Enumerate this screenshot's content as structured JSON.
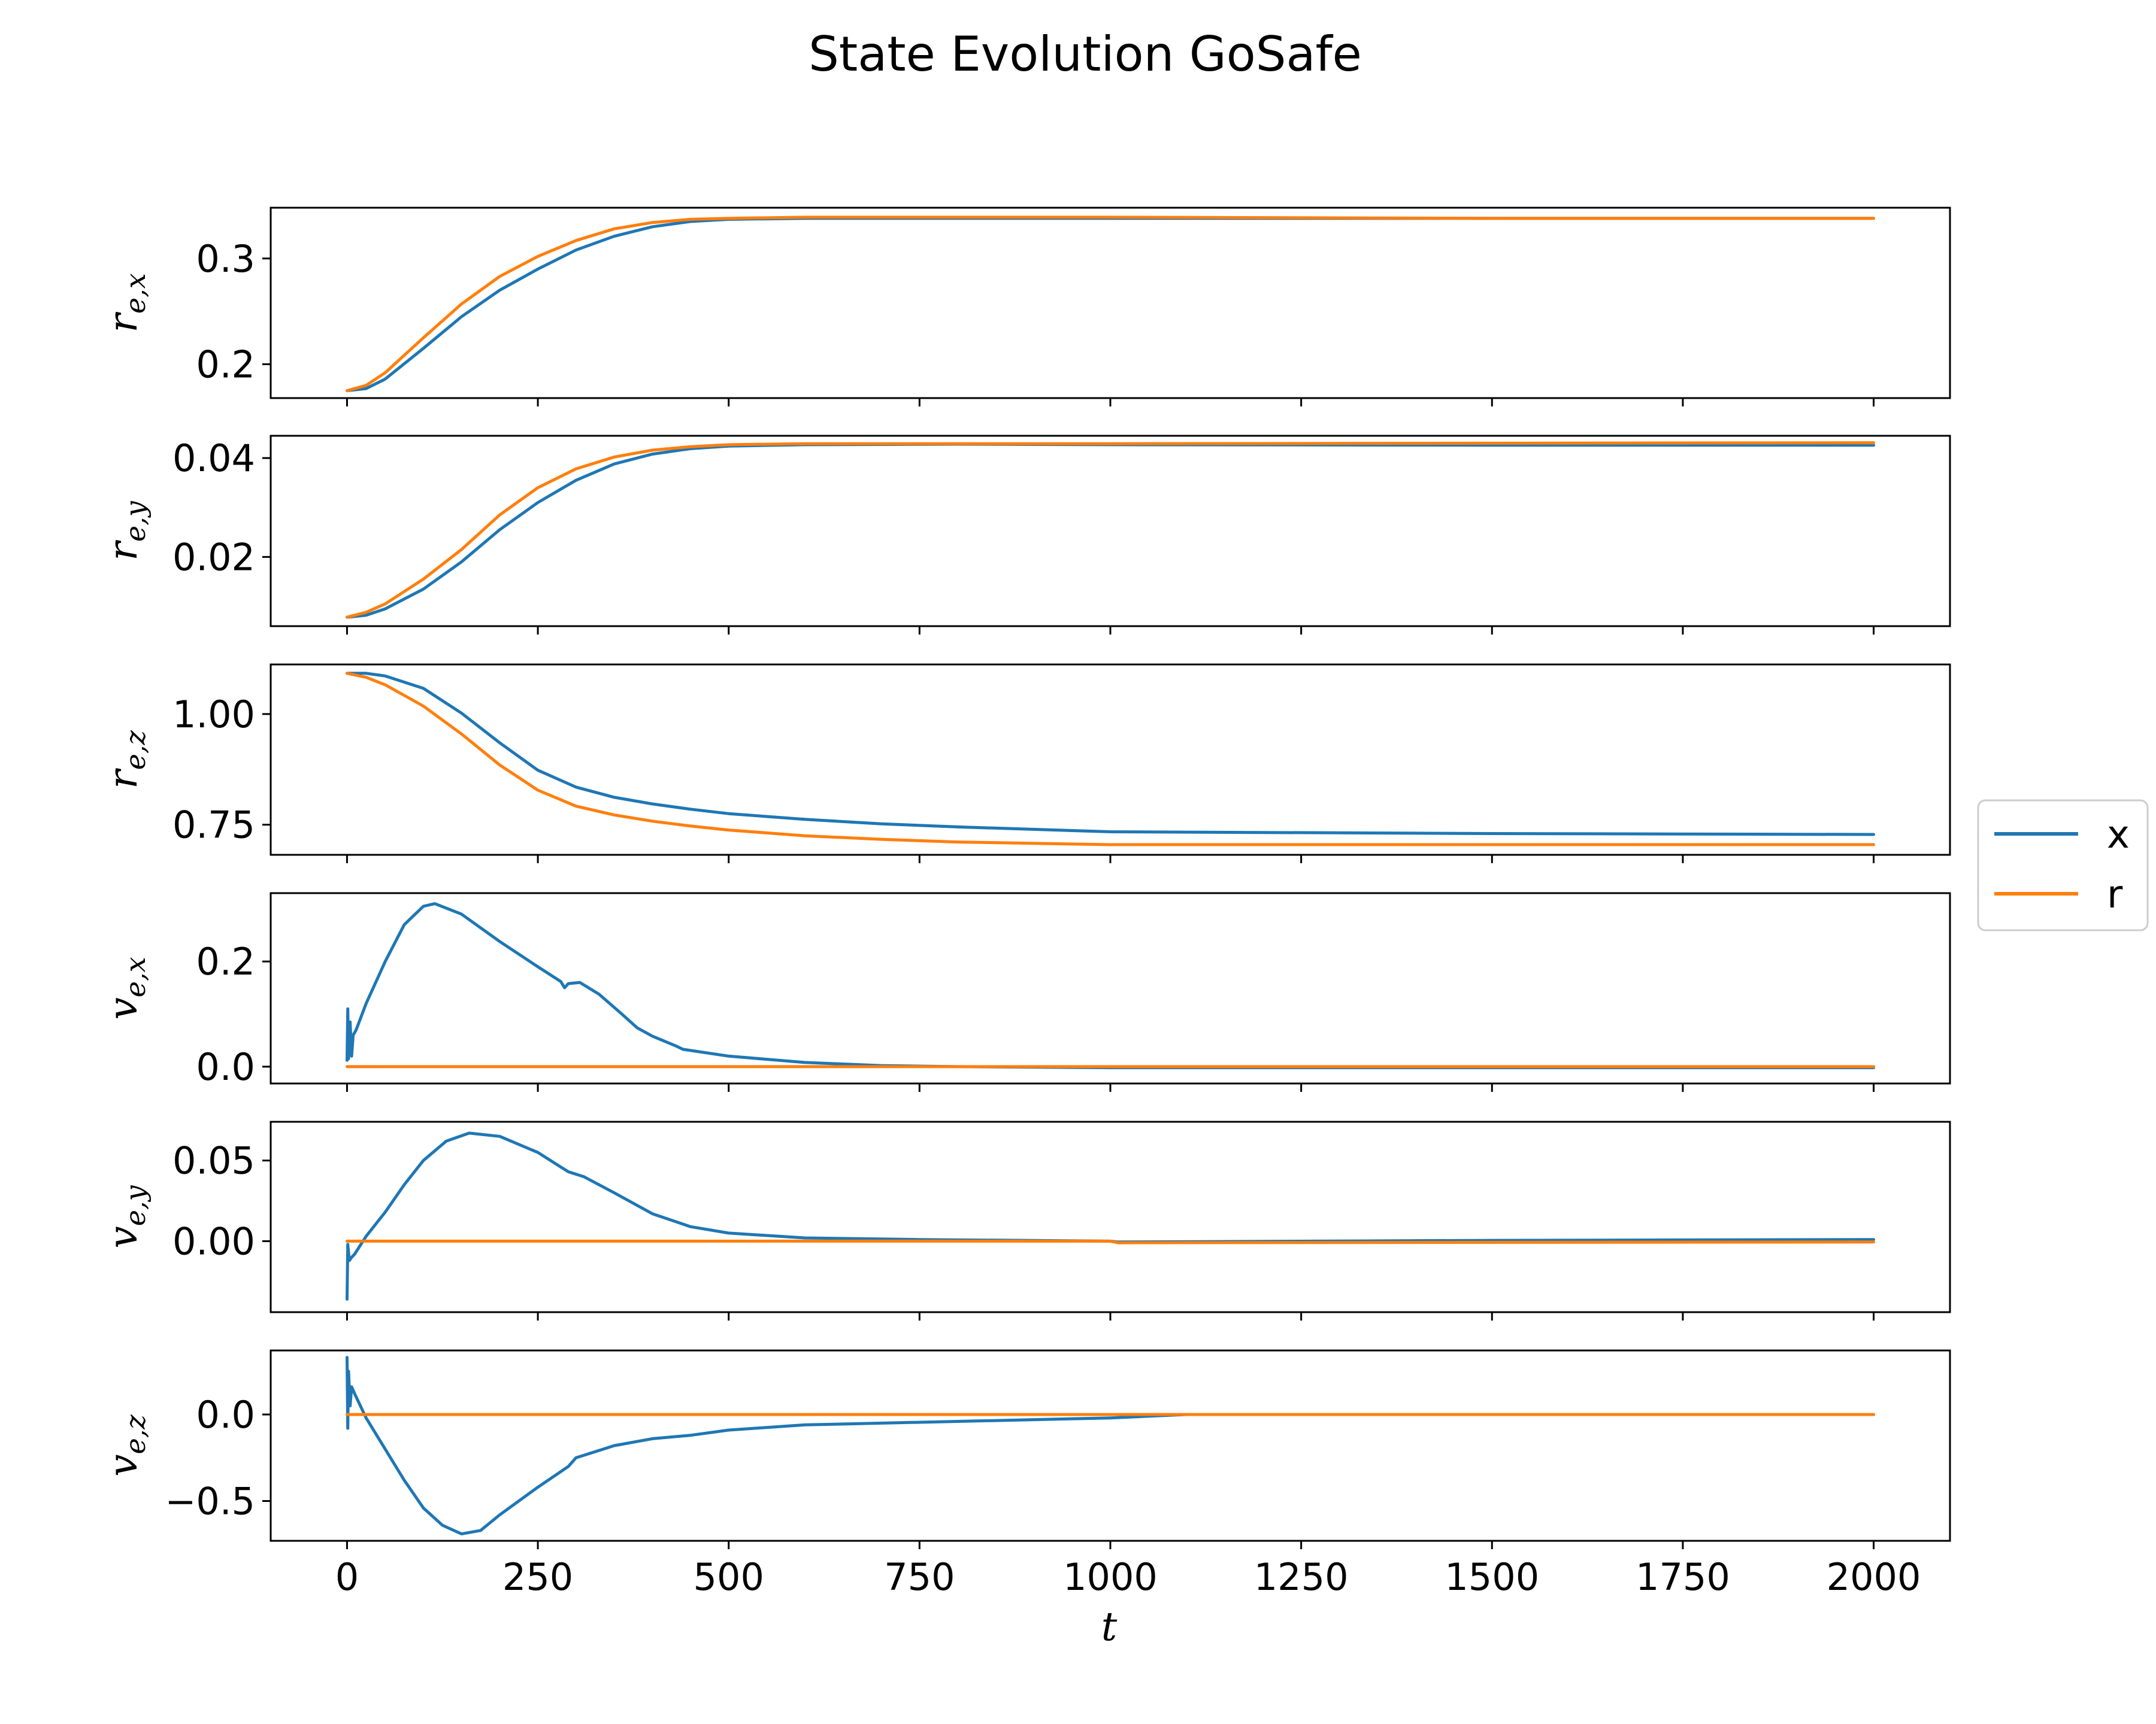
{
  "chart_data": {
    "type": "line",
    "title": "State Evolution GoSafe",
    "xlabel": "t",
    "xlim": [
      -100,
      2100
    ],
    "x_ticks": [
      0,
      250,
      500,
      750,
      1000,
      1250,
      1500,
      1750,
      2000
    ],
    "x_tick_labels": [
      "0",
      "250",
      "500",
      "750",
      "1000",
      "1250",
      "1500",
      "1750",
      "2000"
    ],
    "legend": {
      "placement": "center-right outside",
      "entries": [
        {
          "label": "x",
          "color": "#1f77b4"
        },
        {
          "label": "r",
          "color": "#ff7f0e"
        }
      ]
    },
    "subplots": [
      {
        "ylabel": {
          "base": "r",
          "sub": "e,x"
        },
        "ylim": [
          0.168,
          0.348
        ],
        "y_ticks": [
          0.2,
          0.3
        ],
        "y_tick_labels": [
          "0.2",
          "0.3"
        ],
        "series": [
          {
            "name": "x",
            "color": "#1f77b4",
            "points": [
              [
                0,
                0.175
              ],
              [
                25,
                0.177
              ],
              [
                50,
                0.186
              ],
              [
                100,
                0.215
              ],
              [
                150,
                0.245
              ],
              [
                200,
                0.27
              ],
              [
                250,
                0.29
              ],
              [
                300,
                0.308
              ],
              [
                350,
                0.321
              ],
              [
                400,
                0.33
              ],
              [
                450,
                0.335
              ],
              [
                500,
                0.337
              ],
              [
                600,
                0.338
              ],
              [
                800,
                0.338
              ],
              [
                1000,
                0.338
              ],
              [
                1500,
                0.338
              ],
              [
                2000,
                0.338
              ]
            ]
          },
          {
            "name": "r",
            "color": "#ff7f0e",
            "points": [
              [
                0,
                0.175
              ],
              [
                25,
                0.18
              ],
              [
                50,
                0.192
              ],
              [
                100,
                0.225
              ],
              [
                150,
                0.257
              ],
              [
                200,
                0.283
              ],
              [
                250,
                0.302
              ],
              [
                300,
                0.317
              ],
              [
                350,
                0.328
              ],
              [
                400,
                0.334
              ],
              [
                450,
                0.337
              ],
              [
                500,
                0.338
              ],
              [
                600,
                0.339
              ],
              [
                1000,
                0.339
              ],
              [
                1500,
                0.338
              ],
              [
                2000,
                0.338
              ]
            ]
          }
        ]
      },
      {
        "ylabel": {
          "base": "r",
          "sub": "e,y"
        },
        "ylim": [
          0.006,
          0.0445
        ],
        "y_ticks": [
          0.02,
          0.04
        ],
        "y_tick_labels": [
          "0.02",
          "0.04"
        ],
        "series": [
          {
            "name": "x",
            "color": "#1f77b4",
            "points": [
              [
                0,
                0.0078
              ],
              [
                25,
                0.0082
              ],
              [
                50,
                0.0095
              ],
              [
                100,
                0.0135
              ],
              [
                150,
                0.019
              ],
              [
                200,
                0.0255
              ],
              [
                250,
                0.031
              ],
              [
                300,
                0.0355
              ],
              [
                350,
                0.0388
              ],
              [
                400,
                0.0408
              ],
              [
                450,
                0.0419
              ],
              [
                500,
                0.0424
              ],
              [
                600,
                0.0427
              ],
              [
                800,
                0.0428
              ],
              [
                1000,
                0.0427
              ],
              [
                1500,
                0.0426
              ],
              [
                2000,
                0.0426
              ]
            ]
          },
          {
            "name": "r",
            "color": "#ff7f0e",
            "points": [
              [
                0,
                0.0078
              ],
              [
                25,
                0.0088
              ],
              [
                50,
                0.0105
              ],
              [
                100,
                0.0155
              ],
              [
                150,
                0.0215
              ],
              [
                200,
                0.0285
              ],
              [
                250,
                0.034
              ],
              [
                300,
                0.0378
              ],
              [
                350,
                0.0402
              ],
              [
                400,
                0.0416
              ],
              [
                450,
                0.0423
              ],
              [
                500,
                0.0427
              ],
              [
                600,
                0.0429
              ],
              [
                1000,
                0.0429
              ],
              [
                1500,
                0.043
              ],
              [
                2000,
                0.0431
              ]
            ]
          }
        ]
      },
      {
        "ylabel": {
          "base": "r",
          "sub": "e,z"
        },
        "ylim": [
          0.682,
          1.112
        ],
        "y_ticks": [
          0.75,
          1.0
        ],
        "y_tick_labels": [
          "0.75",
          "1.00"
        ],
        "series": [
          {
            "name": "x",
            "color": "#1f77b4",
            "points": [
              [
                0,
                1.092
              ],
              [
                25,
                1.092
              ],
              [
                50,
                1.086
              ],
              [
                100,
                1.058
              ],
              [
                150,
                1.002
              ],
              [
                200,
                0.935
              ],
              [
                250,
                0.873
              ],
              [
                300,
                0.835
              ],
              [
                350,
                0.812
              ],
              [
                400,
                0.797
              ],
              [
                450,
                0.785
              ],
              [
                500,
                0.775
              ],
              [
                600,
                0.762
              ],
              [
                700,
                0.752
              ],
              [
                800,
                0.745
              ],
              [
                1000,
                0.734
              ],
              [
                1500,
                0.73
              ],
              [
                2000,
                0.728
              ]
            ]
          },
          {
            "name": "r",
            "color": "#ff7f0e",
            "points": [
              [
                0,
                1.092
              ],
              [
                25,
                1.083
              ],
              [
                50,
                1.066
              ],
              [
                100,
                1.018
              ],
              [
                150,
                0.955
              ],
              [
                200,
                0.885
              ],
              [
                250,
                0.828
              ],
              [
                300,
                0.792
              ],
              [
                350,
                0.772
              ],
              [
                400,
                0.758
              ],
              [
                450,
                0.747
              ],
              [
                500,
                0.738
              ],
              [
                600,
                0.725
              ],
              [
                700,
                0.717
              ],
              [
                800,
                0.711
              ],
              [
                1000,
                0.705
              ],
              [
                1500,
                0.705
              ],
              [
                2000,
                0.705
              ]
            ]
          }
        ]
      },
      {
        "ylabel": {
          "base": "v",
          "sub": "e,x"
        },
        "ylim": [
          -0.032,
          0.33
        ],
        "y_ticks": [
          0.0,
          0.2
        ],
        "y_tick_labels": [
          "0.0",
          "0.2"
        ],
        "series": [
          {
            "name": "x",
            "color": "#1f77b4",
            "points": [
              [
                0,
                0.012
              ],
              [
                1,
                0.11
              ],
              [
                2,
                0.015
              ],
              [
                4,
                0.085
              ],
              [
                6,
                0.02
              ],
              [
                8,
                0.06
              ],
              [
                12,
                0.07
              ],
              [
                25,
                0.12
              ],
              [
                50,
                0.2
              ],
              [
                75,
                0.27
              ],
              [
                100,
                0.305
              ],
              [
                115,
                0.31
              ],
              [
                150,
                0.29
              ],
              [
                200,
                0.238
              ],
              [
                250,
                0.19
              ],
              [
                280,
                0.162
              ],
              [
                285,
                0.15
              ],
              [
                290,
                0.158
              ],
              [
                305,
                0.16
              ],
              [
                330,
                0.138
              ],
              [
                360,
                0.1
              ],
              [
                380,
                0.074
              ],
              [
                400,
                0.058
              ],
              [
                430,
                0.04
              ],
              [
                440,
                0.033
              ],
              [
                500,
                0.02
              ],
              [
                600,
                0.008
              ],
              [
                700,
                0.002
              ],
              [
                800,
                0.0
              ],
              [
                1000,
                -0.002
              ],
              [
                1500,
                -0.002
              ],
              [
                2000,
                -0.002
              ]
            ]
          },
          {
            "name": "r",
            "color": "#ff7f0e",
            "points": [
              [
                0,
                0.0
              ],
              [
                2000,
                0.0
              ]
            ]
          }
        ]
      },
      {
        "ylabel": {
          "base": "v",
          "sub": "e,y"
        },
        "ylim": [
          -0.044,
          0.074
        ],
        "y_ticks": [
          0.0,
          0.05
        ],
        "y_tick_labels": [
          "0.00",
          "0.05"
        ],
        "series": [
          {
            "name": "x",
            "color": "#1f77b4",
            "points": [
              [
                0,
                -0.036
              ],
              [
                1,
                -0.002
              ],
              [
                3,
                -0.012
              ],
              [
                6,
                -0.01
              ],
              [
                10,
                -0.008
              ],
              [
                25,
                0.003
              ],
              [
                50,
                0.018
              ],
              [
                75,
                0.035
              ],
              [
                100,
                0.05
              ],
              [
                130,
                0.062
              ],
              [
                160,
                0.067
              ],
              [
                200,
                0.065
              ],
              [
                250,
                0.055
              ],
              [
                280,
                0.046
              ],
              [
                290,
                0.043
              ],
              [
                310,
                0.04
              ],
              [
                350,
                0.03
              ],
              [
                400,
                0.017
              ],
              [
                450,
                0.009
              ],
              [
                500,
                0.005
              ],
              [
                600,
                0.002
              ],
              [
                750,
                0.001
              ],
              [
                1000,
                0.0
              ],
              [
                1010,
                -0.0005
              ],
              [
                1500,
                0.0005
              ],
              [
                2000,
                0.001
              ]
            ]
          },
          {
            "name": "r",
            "color": "#ff7f0e",
            "points": [
              [
                0,
                0.0
              ],
              [
                1000,
                0.0
              ],
              [
                1010,
                -0.001
              ],
              [
                2000,
                -0.0005
              ]
            ]
          }
        ]
      },
      {
        "ylabel": {
          "base": "v",
          "sub": "e,z"
        },
        "ylim": [
          -0.73,
          0.37
        ],
        "y_ticks": [
          -0.5,
          0.0
        ],
        "y_tick_labels": [
          "−0.5",
          "0.0"
        ],
        "series": [
          {
            "name": "x",
            "color": "#1f77b4",
            "points": [
              [
                0,
                0.33
              ],
              [
                1,
                -0.08
              ],
              [
                2,
                0.25
              ],
              [
                4,
                0.05
              ],
              [
                6,
                0.16
              ],
              [
                10,
                0.12
              ],
              [
                25,
                -0.02
              ],
              [
                50,
                -0.2
              ],
              [
                75,
                -0.38
              ],
              [
                100,
                -0.54
              ],
              [
                125,
                -0.64
              ],
              [
                150,
                -0.69
              ],
              [
                175,
                -0.67
              ],
              [
                200,
                -0.58
              ],
              [
                250,
                -0.42
              ],
              [
                280,
                -0.33
              ],
              [
                290,
                -0.3
              ],
              [
                300,
                -0.25
              ],
              [
                350,
                -0.18
              ],
              [
                400,
                -0.14
              ],
              [
                450,
                -0.12
              ],
              [
                500,
                -0.09
              ],
              [
                600,
                -0.06
              ],
              [
                800,
                -0.04
              ],
              [
                1000,
                -0.02
              ],
              [
                1100,
                0.0
              ],
              [
                1500,
                0.0
              ],
              [
                2000,
                0.0
              ]
            ]
          },
          {
            "name": "r",
            "color": "#ff7f0e",
            "points": [
              [
                0,
                0.0
              ],
              [
                2000,
                0.0
              ]
            ]
          }
        ]
      }
    ]
  }
}
